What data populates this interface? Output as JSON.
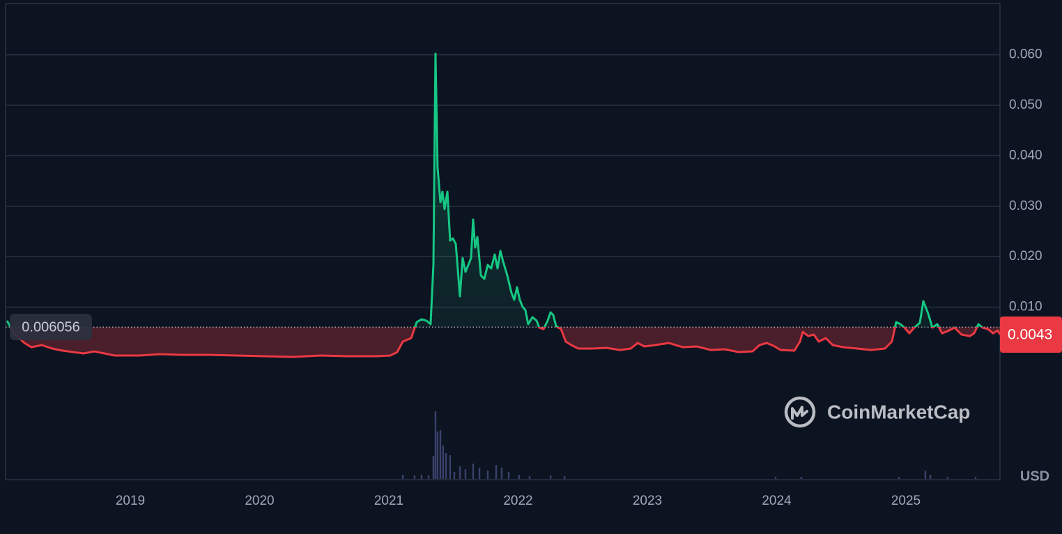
{
  "chart_data": {
    "type": "line",
    "x": [
      2018.046,
      2018.1,
      2018.181,
      2018.235,
      2018.315,
      2018.396,
      2018.477,
      2018.558,
      2018.639,
      2018.72,
      2018.801,
      2018.881,
      2019.07,
      2019.232,
      2019.394,
      2019.609,
      2019.825,
      2020.04,
      2020.256,
      2020.472,
      2020.687,
      2020.903,
      2021.011,
      2021.065,
      2021.108,
      2021.173,
      2021.216,
      2021.253,
      2021.291,
      2021.323,
      2021.345,
      2021.361,
      2021.377,
      2021.399,
      2021.415,
      2021.431,
      2021.453,
      2021.474,
      2021.496,
      2021.518,
      2021.55,
      2021.571,
      2021.593,
      2021.615,
      2021.636,
      2021.652,
      2021.668,
      2021.685,
      2021.712,
      2021.739,
      2021.765,
      2021.792,
      2021.819,
      2021.841,
      2021.863,
      2021.884,
      2021.916,
      2021.949,
      2021.97,
      2021.992,
      2022.013,
      2022.035,
      2022.057,
      2022.078,
      2022.111,
      2022.143,
      2022.164,
      2022.197,
      2022.229,
      2022.251,
      2022.272,
      2022.294,
      2022.332,
      2022.369,
      2022.412,
      2022.466,
      2022.574,
      2022.682,
      2022.79,
      2022.871,
      2022.925,
      2022.978,
      2023.059,
      2023.167,
      2023.275,
      2023.383,
      2023.491,
      2023.598,
      2023.706,
      2023.814,
      2023.868,
      2023.922,
      2023.976,
      2024.03,
      2024.137,
      2024.181,
      2024.202,
      2024.245,
      2024.288,
      2024.326,
      2024.38,
      2024.434,
      2024.515,
      2024.623,
      2024.73,
      2024.838,
      2024.892,
      2024.925,
      2024.957,
      2024.989,
      2025.027,
      2025.065,
      2025.108,
      2025.135,
      2025.173,
      2025.205,
      2025.243,
      2025.28,
      2025.323,
      2025.377,
      2025.431,
      2025.496,
      2025.528,
      2025.561,
      2025.593,
      2025.636,
      2025.674,
      2025.712,
      2025.728
    ],
    "values": [
      0.00732,
      0.00483,
      0.0029,
      0.00207,
      0.00249,
      0.0018,
      0.00138,
      0.0011,
      0.00083,
      0.00124,
      0.00083,
      0.00041,
      0.00041,
      0.00069,
      0.00055,
      0.00055,
      0.00041,
      0.00028,
      0.00014,
      0.00041,
      0.00028,
      0.00028,
      0.00041,
      0.0011,
      0.00318,
      0.00387,
      0.00704,
      0.0076,
      0.00732,
      0.00663,
      0.01837,
      0.06022,
      0.03771,
      0.0308,
      0.03287,
      0.02942,
      0.03287,
      0.0232,
      0.02362,
      0.02251,
      0.01215,
      0.01975,
      0.01699,
      0.01837,
      0.01975,
      0.02735,
      0.02182,
      0.0239,
      0.0163,
      0.01561,
      0.01837,
      0.01768,
      0.02044,
      0.01768,
      0.02113,
      0.01906,
      0.0163,
      0.01285,
      0.01146,
      0.01395,
      0.01146,
      0.01008,
      0.00939,
      0.00663,
      0.00801,
      0.00732,
      0.00594,
      0.00566,
      0.00732,
      0.00898,
      0.00843,
      0.00622,
      0.00566,
      0.00318,
      0.00249,
      0.0018,
      0.0018,
      0.00193,
      0.00152,
      0.0018,
      0.0029,
      0.00221,
      0.00249,
      0.0029,
      0.00207,
      0.00221,
      0.00152,
      0.00166,
      0.0011,
      0.00124,
      0.00249,
      0.0029,
      0.00235,
      0.00152,
      0.00138,
      0.00318,
      0.00511,
      0.00428,
      0.00456,
      0.00318,
      0.00387,
      0.00249,
      0.00207,
      0.0018,
      0.00152,
      0.0018,
      0.00318,
      0.00704,
      0.00663,
      0.00594,
      0.00483,
      0.00594,
      0.00691,
      0.01119,
      0.0087,
      0.00594,
      0.00663,
      0.00483,
      0.00525,
      0.00594,
      0.00456,
      0.00428,
      0.00483,
      0.00663,
      0.00594,
      0.00566,
      0.00483,
      0.00539,
      0.00456
    ],
    "color_up": "#16c784",
    "color_down": "#ea3943",
    "baseline": 0.006056,
    "current_label": "0.0043",
    "xlim": [
      2018.035,
      2025.728
    ],
    "xticks": [
      2019,
      2020,
      2021,
      2022,
      2023,
      2024,
      2025
    ],
    "ylim": [
      -0.02417,
      0.07017
    ],
    "yticks": [
      {
        "value": 0.01,
        "label": "0.010"
      },
      {
        "value": 0.02,
        "label": "0.020"
      },
      {
        "value": 0.03,
        "label": "0.030"
      },
      {
        "value": 0.04,
        "label": "0.040"
      },
      {
        "value": 0.05,
        "label": "0.050"
      },
      {
        "value": 0.06,
        "label": "0.060"
      }
    ],
    "grid": true,
    "currency": "USD",
    "watermark": "CoinMarketCap",
    "volume": {
      "color": "#39416b",
      "vlim": [
        0,
        100
      ],
      "x": [
        2021.108,
        2021.199,
        2021.253,
        2021.307,
        2021.345,
        2021.361,
        2021.377,
        2021.399,
        2021.42,
        2021.442,
        2021.474,
        2021.507,
        2021.55,
        2021.593,
        2021.652,
        2021.701,
        2021.765,
        2021.83,
        2021.873,
        2021.927,
        2022.008,
        2022.089,
        2022.251,
        2022.359,
        2023.992,
        2024.191,
        2024.946,
        2025.151,
        2025.189,
        2025.323,
        2025.539
      ],
      "values": [
        6,
        5,
        6,
        5,
        33,
        97,
        68,
        70,
        48,
        37,
        34,
        10,
        18,
        14,
        22,
        16,
        12,
        20,
        16,
        10,
        6,
        4,
        5,
        4,
        3,
        3,
        3,
        12,
        6,
        3,
        3
      ]
    }
  }
}
